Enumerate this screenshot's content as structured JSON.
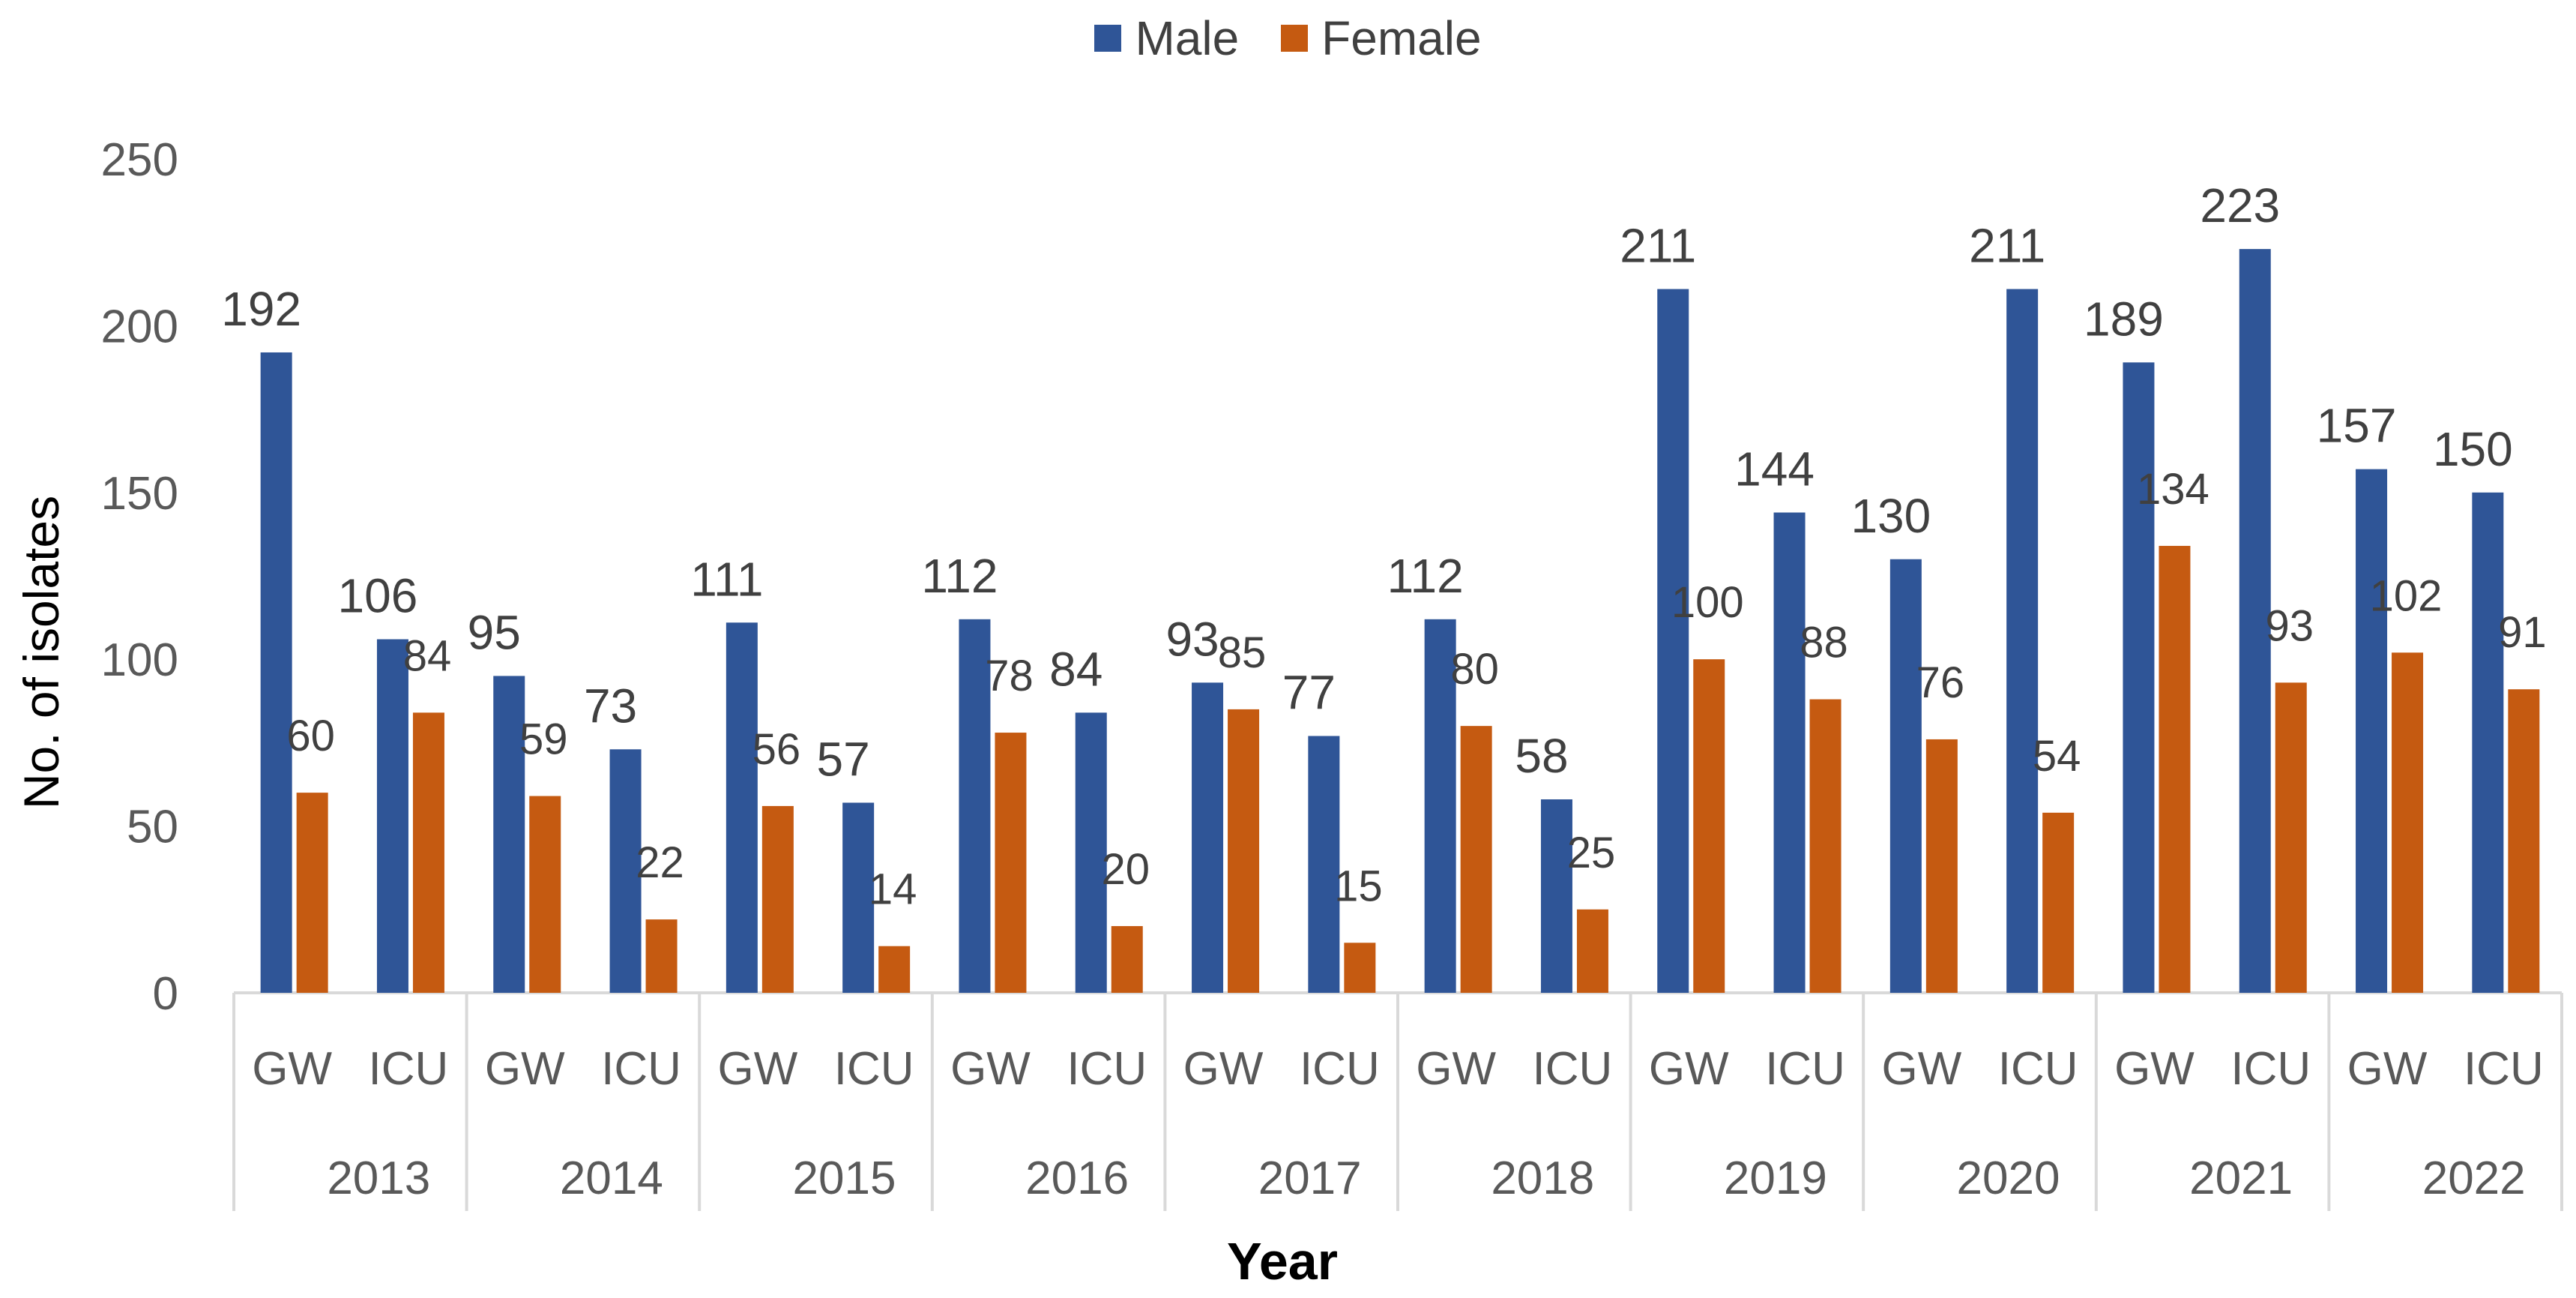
{
  "chart_data": {
    "type": "bar",
    "title": "",
    "xlabel": "Year",
    "ylabel": "No. of isolates",
    "ylim": [
      0,
      250
    ],
    "yticks": [
      0,
      50,
      100,
      150,
      200,
      250
    ],
    "grid": false,
    "legend_position": "top-center",
    "years": [
      "2013",
      "2014",
      "2015",
      "2016",
      "2017",
      "2018",
      "2019",
      "2020",
      "2021",
      "2022"
    ],
    "wards": [
      "GW",
      "ICU"
    ],
    "categories": [
      "GW",
      "ICU",
      "GW",
      "ICU",
      "GW",
      "ICU",
      "GW",
      "ICU",
      "GW",
      "ICU",
      "GW",
      "ICU",
      "GW",
      "ICU",
      "GW",
      "ICU",
      "GW",
      "ICU",
      "GW",
      "ICU"
    ],
    "series": [
      {
        "name": "Male",
        "color": "#2F5597",
        "values": [
          192,
          106,
          95,
          73,
          111,
          57,
          112,
          84,
          93,
          77,
          112,
          58,
          211,
          144,
          130,
          211,
          189,
          223,
          157,
          150
        ]
      },
      {
        "name": "Female",
        "color": "#C55A11",
        "values": [
          60,
          84,
          59,
          22,
          56,
          14,
          78,
          20,
          85,
          15,
          80,
          25,
          100,
          88,
          76,
          54,
          134,
          93,
          102,
          91
        ]
      }
    ]
  }
}
